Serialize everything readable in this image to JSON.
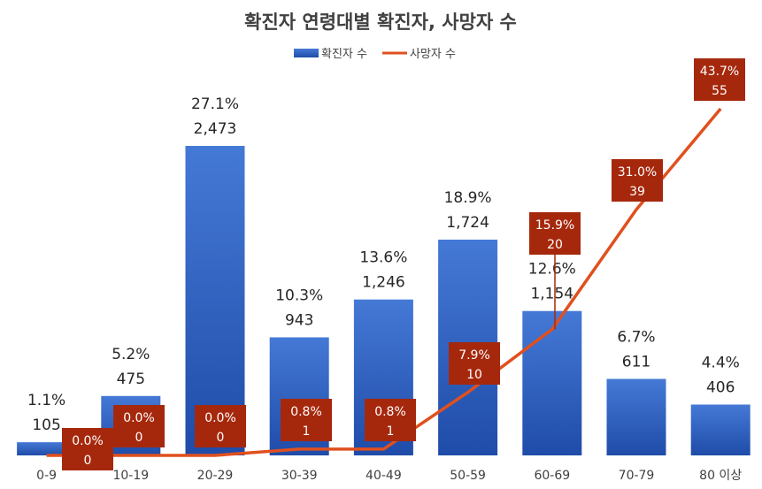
{
  "chart_data": {
    "type": "bar",
    "title": "확진자 연령대별 확진자, 사망자 수",
    "categories": [
      "0-9",
      "10-19",
      "20-29",
      "30-39",
      "40-49",
      "50-59",
      "60-69",
      "70-79",
      "80 이상"
    ],
    "series": [
      {
        "name": "확진자 수",
        "kind": "bar",
        "color": "#2E5FC2",
        "values": [
          105,
          475,
          2473,
          943,
          1246,
          1724,
          1154,
          611,
          406
        ],
        "percent_labels": [
          "1.1%",
          "5.2%",
          "27.1%",
          "10.3%",
          "13.6%",
          "18.9%",
          "12.6%",
          "6.7%",
          "4.4%"
        ],
        "value_labels": [
          "105",
          "475",
          "2,473",
          "943",
          "1,246",
          "1,724",
          "1,154",
          "611",
          "406"
        ]
      },
      {
        "name": "사망자 수",
        "kind": "line",
        "color": "#E0501E",
        "label_bg": "#A6280C",
        "values": [
          0,
          0,
          0,
          1,
          1,
          10,
          20,
          39,
          55
        ],
        "percent_labels": [
          "0.0%",
          "0.0%",
          "0.0%",
          "0.8%",
          "0.8%",
          "7.9%",
          "15.9%",
          "31.0%",
          "43.7%"
        ],
        "value_labels": [
          "0",
          "0",
          "0",
          "1",
          "1",
          "10",
          "20",
          "39",
          "55"
        ]
      }
    ],
    "legend": "top-center",
    "grid": false
  }
}
